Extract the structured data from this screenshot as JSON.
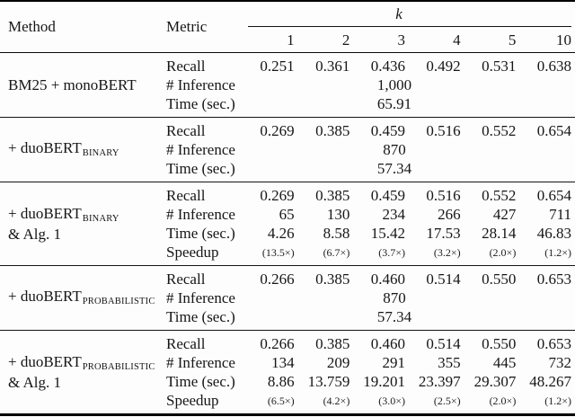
{
  "header": {
    "method": "Method",
    "metric": "Metric",
    "k_label": "k",
    "k_values": [
      "1",
      "2",
      "3",
      "4",
      "5",
      "10"
    ]
  },
  "blocks": [
    {
      "method": {
        "prefix": "BM25 + monoBERT",
        "subscript": "",
        "line2": ""
      },
      "rows": [
        {
          "metric": "Recall",
          "values": [
            "0.251",
            "0.361",
            "0.436",
            "0.492",
            "0.531",
            "0.638"
          ]
        },
        {
          "metric": "# Inference",
          "span_value": "1,000"
        },
        {
          "metric": "Time (sec.)",
          "span_value": "65.91"
        }
      ]
    },
    {
      "method": {
        "prefix": "+ duoBERT",
        "subscript": "BINARY",
        "line2": ""
      },
      "rows": [
        {
          "metric": "Recall",
          "values": [
            "0.269",
            "0.385",
            "0.459",
            "0.516",
            "0.552",
            "0.654"
          ]
        },
        {
          "metric": "# Inference",
          "span_value": "870"
        },
        {
          "metric": "Time (sec.)",
          "span_value": "57.34"
        }
      ]
    },
    {
      "method": {
        "prefix": "+ duoBERT",
        "subscript": "BINARY",
        "line2": "& Alg. 1"
      },
      "rows": [
        {
          "metric": "Recall",
          "values": [
            "0.269",
            "0.385",
            "0.459",
            "0.516",
            "0.552",
            "0.654"
          ]
        },
        {
          "metric": "# Inference",
          "values": [
            "65",
            "130",
            "234",
            "266",
            "427",
            "711"
          ]
        },
        {
          "metric": "Time (sec.)",
          "values": [
            "4.26",
            "8.58",
            "15.42",
            "17.53",
            "28.14",
            "46.83"
          ]
        },
        {
          "metric": "Speedup",
          "small": true,
          "values": [
            "(13.5×)",
            "(6.7×)",
            "(3.7×)",
            "(3.2×)",
            "(2.0×)",
            "(1.2×)"
          ]
        }
      ]
    },
    {
      "method": {
        "prefix": "+ duoBERT",
        "subscript": "PROBABILISTIC",
        "line2": ""
      },
      "rows": [
        {
          "metric": "Recall",
          "values": [
            "0.266",
            "0.385",
            "0.460",
            "0.514",
            "0.550",
            "0.653"
          ]
        },
        {
          "metric": "# Inference",
          "span_value": "870"
        },
        {
          "metric": "Time (sec.)",
          "span_value": "57.34"
        }
      ]
    },
    {
      "method": {
        "prefix": "+ duoBERT",
        "subscript": "PROBABILISTIC",
        "line2": "& Alg. 1"
      },
      "rows": [
        {
          "metric": "Recall",
          "values": [
            "0.266",
            "0.385",
            "0.460",
            "0.514",
            "0.550",
            "0.653"
          ]
        },
        {
          "metric": "# Inference",
          "values": [
            "134",
            "209",
            "291",
            "355",
            "445",
            "732"
          ]
        },
        {
          "metric": "Time (sec.)",
          "values": [
            "8.86",
            "13.759",
            "19.201",
            "23.397",
            "29.307",
            "48.267"
          ]
        },
        {
          "metric": "Speedup",
          "small": true,
          "values": [
            "(6.5×)",
            "(4.2×)",
            "(3.0×)",
            "(2.5×)",
            "(2.0×)",
            "(1.2×)"
          ]
        }
      ]
    }
  ]
}
